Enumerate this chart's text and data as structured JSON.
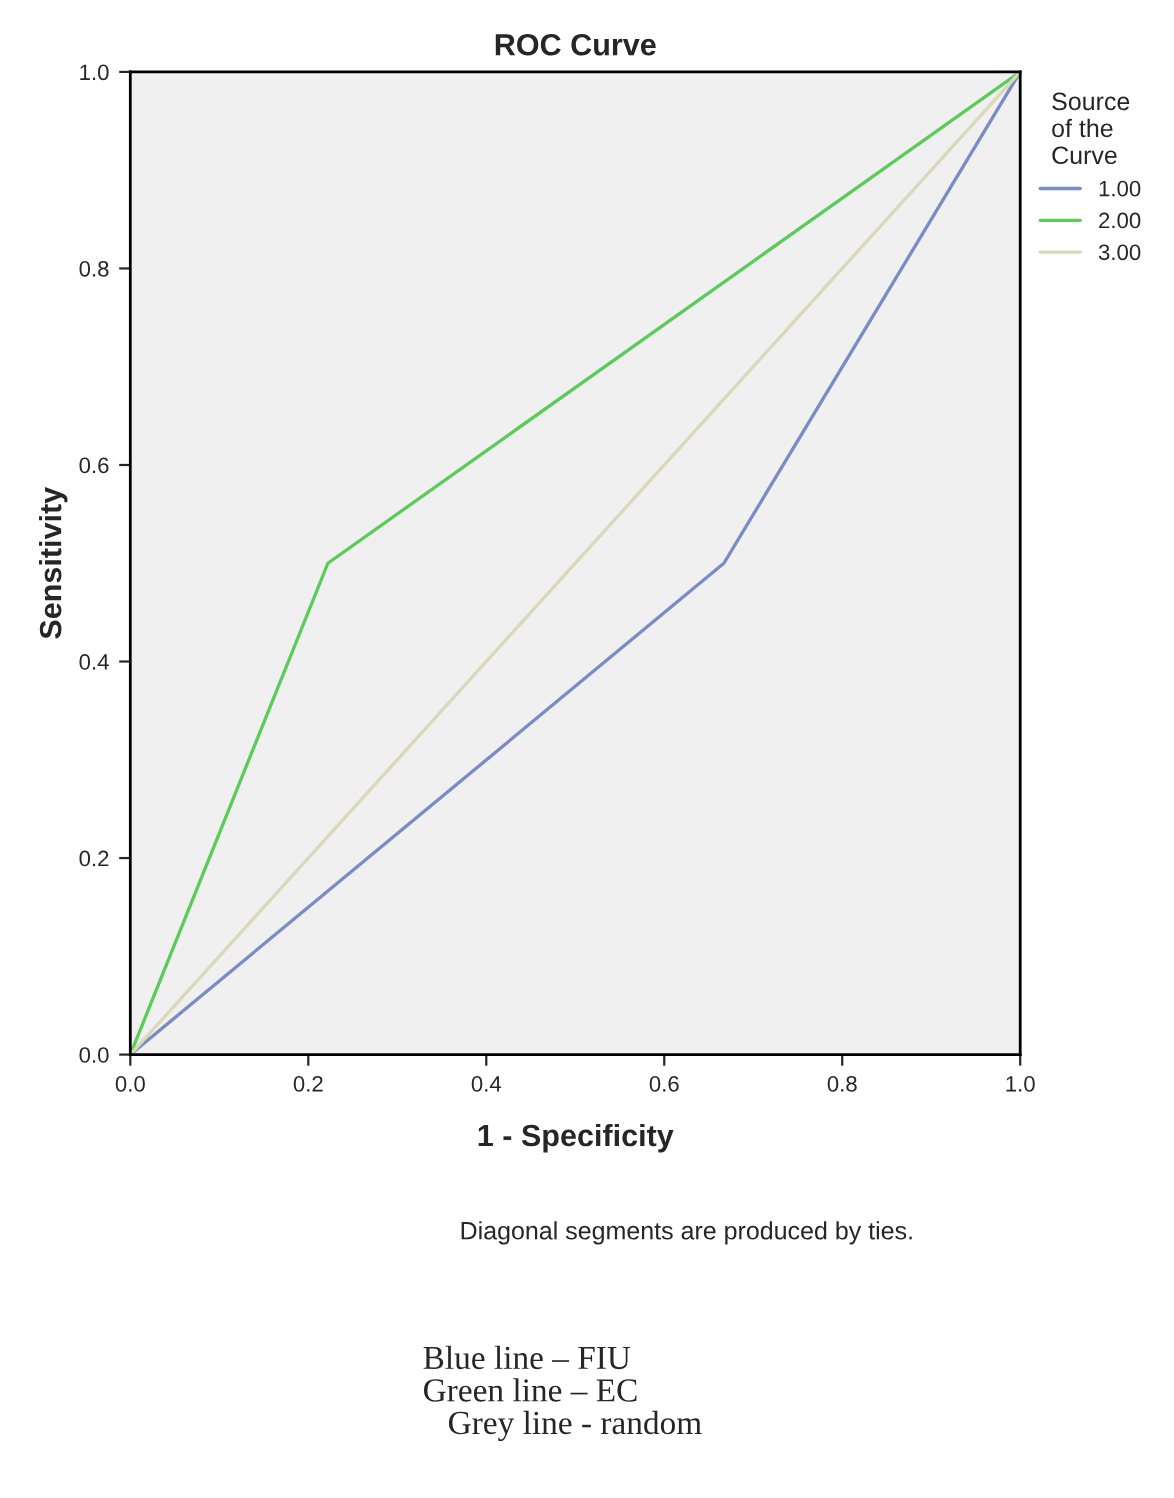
{
  "chart_data": {
    "type": "line",
    "title": "ROC Curve",
    "xlabel": "1 - Specificity",
    "ylabel": "Sensitivity",
    "legend_title": "Source\nof the\nCurve",
    "legend": "top right",
    "grid": false,
    "marker": "none",
    "line_style": "solid",
    "xlim": [
      0,
      1
    ],
    "ylim": [
      0,
      1
    ],
    "xticks": [
      {
        "value": 0,
        "label": "0.0"
      },
      0.2,
      0.4,
      0.6,
      0.8,
      {
        "value": 1,
        "label": "1.0"
      }
    ],
    "yticks": [
      {
        "value": 0,
        "label": "0.0"
      },
      0.2,
      0.4,
      0.6,
      0.8,
      {
        "value": 1,
        "label": "1.0"
      }
    ],
    "series": [
      {
        "name": "1.00",
        "color": "#7b8cc4",
        "x": [
          0,
          0.667,
          1
        ],
        "values": [
          0,
          0.5,
          1
        ]
      },
      {
        "name": "2.00",
        "color": "#5ccb5c",
        "x": [
          0,
          0.222,
          1
        ],
        "values": [
          0,
          0.5,
          1
        ]
      },
      {
        "name": "3.00",
        "color": "#d9d9b9",
        "x": [
          0,
          1
        ],
        "values": [
          0,
          1
        ]
      }
    ],
    "annotations": [
      "Diagonal segments are produced by ties.",
      "Blue line – FIU\nGreen line – EC\n   Grey line - random"
    ]
  }
}
